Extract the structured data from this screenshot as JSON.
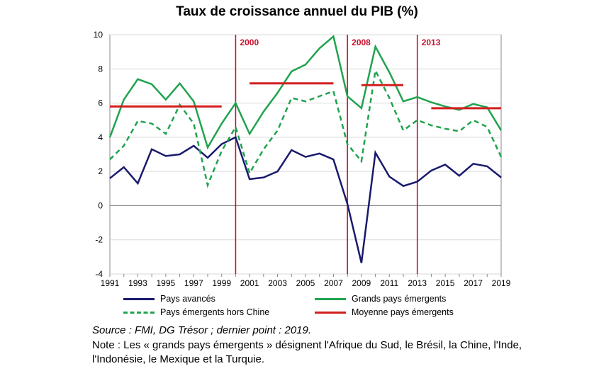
{
  "title": "Taux de croissance annuel du PIB (%)",
  "chart_data": {
    "type": "line",
    "title": "Taux de croissance annuel du PIB (%)",
    "xlabel": "",
    "ylabel": "",
    "x": [
      1991,
      1992,
      1993,
      1994,
      1995,
      1996,
      1997,
      1998,
      1999,
      2000,
      2001,
      2002,
      2003,
      2004,
      2005,
      2006,
      2007,
      2008,
      2009,
      2010,
      2011,
      2012,
      2013,
      2014,
      2015,
      2016,
      2017,
      2018,
      2019
    ],
    "xticks": [
      "1991",
      "1993",
      "1995",
      "1997",
      "1999",
      "2001",
      "2003",
      "2005",
      "2007",
      "2009",
      "2011",
      "2013",
      "2015",
      "2017",
      "2019"
    ],
    "ylim": [
      -4,
      10
    ],
    "yticks": [
      "-4",
      "-2",
      "0",
      "2",
      "4",
      "6",
      "8",
      "10"
    ],
    "series": [
      {
        "name": "Pays avancés",
        "color": "#1a1a6e",
        "style": "solid",
        "values": [
          1.6,
          2.25,
          1.3,
          3.3,
          2.9,
          3.0,
          3.5,
          2.8,
          3.6,
          4.0,
          1.55,
          1.65,
          2.0,
          3.25,
          2.85,
          3.05,
          2.7,
          0.1,
          -3.35,
          3.1,
          1.7,
          1.15,
          1.4,
          2.05,
          2.4,
          1.75,
          2.45,
          2.3,
          1.65
        ]
      },
      {
        "name": "Grands pays émergents",
        "color": "#21a34f",
        "style": "solid",
        "values": [
          4.0,
          6.2,
          7.4,
          7.1,
          6.2,
          7.15,
          6.1,
          3.4,
          4.8,
          6.0,
          4.2,
          5.5,
          6.6,
          7.85,
          8.25,
          9.2,
          9.9,
          6.4,
          5.7,
          9.3,
          7.8,
          6.1,
          6.35,
          6.05,
          5.8,
          5.6,
          5.95,
          5.75,
          4.4
        ]
      },
      {
        "name": "Pays émergents hors Chine",
        "color": "#21a34f",
        "style": "dashed",
        "values": [
          2.7,
          3.5,
          4.95,
          4.8,
          4.2,
          5.9,
          4.8,
          1.2,
          3.2,
          4.6,
          1.9,
          3.3,
          4.4,
          6.3,
          6.1,
          6.4,
          6.7,
          3.6,
          2.6,
          7.9,
          6.3,
          4.4,
          5.0,
          4.7,
          4.5,
          4.35,
          5.0,
          4.6,
          2.85
        ]
      },
      {
        "name": "Moyenne pays émergents",
        "color": "#d31e1e",
        "style": "solid",
        "segments": [
          {
            "x_start": 1991,
            "x_end": 1999,
            "value": 5.8
          },
          {
            "x_start": 2001,
            "x_end": 2007,
            "value": 7.15
          },
          {
            "x_start": 2009,
            "x_end": 2012,
            "value": 7.05
          },
          {
            "x_start": 2014,
            "x_end": 2019,
            "value": 5.7
          }
        ]
      }
    ],
    "vertical_markers": [
      {
        "x": 2000,
        "label": "2000"
      },
      {
        "x": 2008,
        "label": "2008"
      },
      {
        "x": 2013,
        "label": "2013"
      }
    ],
    "legend": {
      "position": "bottom"
    }
  },
  "source": "Source : FMI, DG Trésor ; dernier point : 2019.",
  "note": "Note : Les « grands pays émergents » désignent l'Afrique du Sud, le Brésil, la Chine, l'Inde, l'Indonésie, le Mexique et la Turquie."
}
